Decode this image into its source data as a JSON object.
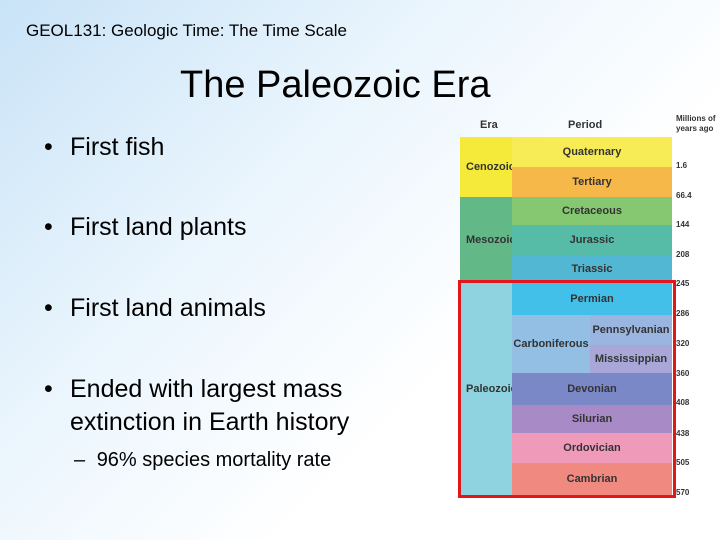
{
  "header": {
    "course_title": "GEOL131: Geologic Time: The Time Scale"
  },
  "slide": {
    "title": "The Paleozoic Era",
    "bullets": [
      "First fish",
      "First land plants",
      "First land animals",
      "Ended with largest mass extinction in Earth history"
    ],
    "bullet_lines_4": [
      "Ended with largest mass",
      "extinction in Earth history"
    ],
    "sub_bullet": "96% species mortality rate",
    "bullet_glyph": "•",
    "sub_glyph": "–"
  },
  "timescale": {
    "headers": {
      "era": "Era",
      "period": "Period",
      "age": "Millions of years ago"
    },
    "age_header_lines": [
      "Millions of",
      "years ago"
    ],
    "eras": [
      "Cenozoic",
      "Mesozoic",
      "Paleozoic"
    ],
    "periods": [
      "Quaternary",
      "Tertiary",
      "Cretaceous",
      "Jurassic",
      "Triassic",
      "Permian",
      "Carboniferous",
      "Pennsylvanian",
      "Mississippian",
      "Devonian",
      "Silurian",
      "Ordovician",
      "Cambrian"
    ],
    "ages": [
      "1.6",
      "66.4",
      "144",
      "208",
      "245",
      "286",
      "320",
      "360",
      "408",
      "438",
      "505",
      "570"
    ],
    "colors": {
      "cenozoic": "#f5ea3a",
      "quaternary": "#f7ec55",
      "tertiary": "#f7b84a",
      "mesozoic": "#63b888",
      "cretaceous": "#86c772",
      "jurassic": "#56bca8",
      "triassic": "#52b7d2",
      "paleozoic": "#8ed3df",
      "permian": "#42c0ea",
      "carboniferous": "#92bfe3",
      "pennsylvanian": "#9ab6e0",
      "mississippian": "#a9a6d8",
      "devonian": "#7b88c8",
      "silurian": "#a88ac7",
      "ordovician": "#ef9ab9",
      "cambrian": "#f08a80",
      "highlight": "#e3171b"
    }
  }
}
